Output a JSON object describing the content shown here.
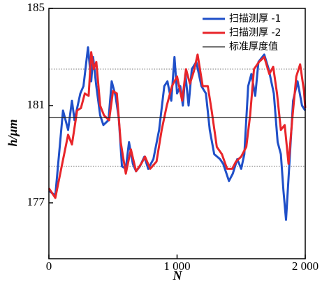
{
  "chart_data": {
    "type": "line",
    "xlabel": "N",
    "ylabel": "h/μm",
    "xlim": [
      0,
      2000
    ],
    "ylim": [
      174.7,
      185
    ],
    "xticks": [
      0,
      {
        "value": 1000,
        "label": "1 000"
      },
      {
        "value": 2000,
        "label": "2 000"
      }
    ],
    "yticks": [
      177,
      181,
      185
    ],
    "hlines": [
      182.5,
      178.5
    ],
    "legend": "upper right",
    "series": [
      {
        "name": "扫描测厚 -1",
        "color": "#1f4fc8",
        "x": [
          0,
          50,
          110,
          150,
          180,
          200,
          245,
          270,
          305,
          330,
          345,
          370,
          400,
          425,
          465,
          490,
          520,
          545,
          570,
          600,
          625,
          655,
          680,
          710,
          745,
          775,
          815,
          860,
          900,
          925,
          955,
          980,
          1000,
          1025,
          1045,
          1065,
          1090,
          1115,
          1150,
          1190,
          1225,
          1255,
          1290,
          1335,
          1360,
          1405,
          1435,
          1470,
          1500,
          1525,
          1555,
          1580,
          1610,
          1635,
          1680,
          1715,
          1755,
          1785,
          1810,
          1830,
          1850,
          1875,
          1905,
          1940,
          1975,
          2000
        ],
        "values": [
          177.5,
          177.3,
          180.8,
          180.0,
          181.2,
          180.4,
          181.5,
          181.8,
          183.4,
          182.0,
          183.0,
          181.8,
          180.6,
          180.2,
          180.4,
          182.0,
          181.4,
          180.5,
          178.5,
          178.4,
          179.5,
          178.6,
          178.3,
          178.5,
          178.9,
          178.4,
          178.8,
          180.0,
          181.8,
          182.0,
          181.2,
          183.0,
          181.5,
          181.8,
          181.0,
          182.3,
          181.0,
          182.5,
          182.8,
          181.8,
          181.5,
          180.0,
          179.0,
          178.8,
          178.6,
          177.9,
          178.2,
          178.8,
          178.4,
          179.0,
          181.8,
          182.3,
          181.4,
          182.8,
          183.1,
          182.5,
          181.5,
          179.5,
          179.0,
          177.5,
          176.3,
          178.5,
          181.2,
          182.0,
          181.0,
          180.8
        ]
      },
      {
        "name": "扫描测厚 -2",
        "color": "#e8252a",
        "x": [
          0,
          50,
          100,
          150,
          180,
          220,
          250,
          280,
          310,
          330,
          350,
          370,
          400,
          430,
          470,
          500,
          530,
          560,
          600,
          640,
          680,
          720,
          750,
          790,
          840,
          880,
          920,
          960,
          1000,
          1040,
          1070,
          1100,
          1130,
          1160,
          1200,
          1240,
          1270,
          1310,
          1350,
          1390,
          1430,
          1460,
          1500,
          1540,
          1570,
          1600,
          1640,
          1680,
          1720,
          1750,
          1780,
          1810,
          1840,
          1870,
          1900,
          1930,
          1960,
          1990,
          2000
        ],
        "values": [
          177.6,
          177.2,
          178.5,
          179.8,
          179.4,
          180.8,
          180.9,
          181.5,
          181.4,
          183.2,
          182.5,
          182.8,
          181.0,
          180.6,
          180.4,
          181.6,
          181.5,
          179.5,
          178.2,
          179.2,
          178.3,
          178.6,
          178.9,
          178.4,
          178.7,
          180.0,
          181.0,
          181.8,
          182.2,
          181.2,
          182.5,
          181.9,
          182.4,
          183.1,
          181.8,
          181.8,
          180.8,
          179.3,
          179.0,
          178.4,
          178.4,
          178.7,
          178.9,
          179.3,
          180.6,
          182.5,
          182.8,
          183.0,
          182.3,
          182.6,
          181.5,
          180.0,
          180.2,
          178.6,
          180.5,
          182.2,
          182.7,
          181.6,
          180.9
        ]
      },
      {
        "name": "标准厚度值",
        "color": "#222222",
        "x": [
          0,
          2000
        ],
        "values": [
          180.5,
          180.5
        ]
      }
    ]
  }
}
